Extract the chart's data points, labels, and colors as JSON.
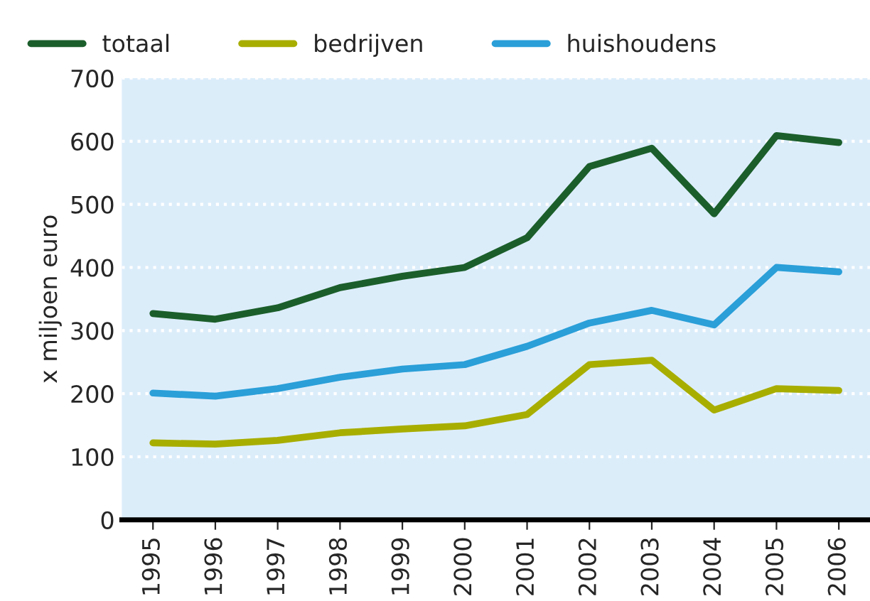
{
  "chart_data": {
    "type": "line",
    "ylabel": "x miljoen euro",
    "categories": [
      "1995",
      "1996",
      "1997",
      "1998",
      "1999",
      "2000",
      "2001",
      "2002",
      "2003",
      "2004",
      "2005",
      "2006"
    ],
    "series": [
      {
        "name": "totaal",
        "color": "#1b5e2b",
        "values": [
          327,
          318,
          336,
          368,
          386,
          400,
          447,
          560,
          589,
          485,
          609,
          598
        ]
      },
      {
        "name": "bedrijven",
        "color": "#a8ae00",
        "values": [
          122,
          120,
          126,
          138,
          144,
          149,
          167,
          246,
          253,
          174,
          208,
          205
        ]
      },
      {
        "name": "huishoudens",
        "color": "#2a9fd8",
        "values": [
          201,
          196,
          208,
          226,
          239,
          246,
          275,
          312,
          332,
          309,
          400,
          393
        ]
      }
    ],
    "ylim": [
      0,
      700
    ],
    "yticks": [
      0,
      100,
      200,
      300,
      400,
      500,
      600,
      700
    ],
    "grid": "y",
    "legend": "top",
    "marker": "none",
    "line_style": "solid"
  }
}
